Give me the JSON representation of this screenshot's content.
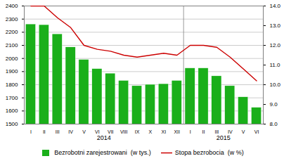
{
  "chart_data": {
    "type": "bar",
    "categories": [
      "I",
      "II",
      "III",
      "IV",
      "V",
      "VI",
      "VII",
      "VIII",
      "IX",
      "X",
      "XI",
      "XII",
      "I",
      "II",
      "III",
      "IV",
      "V",
      "VI"
    ],
    "series": [
      {
        "name": "Bezrobotni zarejestrowani  (w tys.)",
        "type": "bar",
        "color": "#1aaf1a",
        "values": [
          2260,
          2255,
          2185,
          2085,
          1990,
          1920,
          1885,
          1830,
          1790,
          1800,
          1805,
          1830,
          1925,
          1925,
          1865,
          1790,
          1705,
          1625
        ]
      },
      {
        "name": "Stopa bezrobocia  (w %)",
        "type": "line",
        "color": "#cc0000",
        "axis": "y2",
        "values": [
          14.0,
          14.0,
          13.4,
          12.9,
          12.0,
          11.8,
          11.7,
          11.5,
          11.4,
          11.5,
          11.6,
          11.5,
          12.0,
          12.0,
          11.9,
          11.4,
          10.8,
          10.2
        ]
      }
    ],
    "ylim": [
      1500,
      2400
    ],
    "yticks": [
      1500,
      1600,
      1700,
      1800,
      1900,
      2000,
      2100,
      2200,
      2300,
      2400
    ],
    "y2lim": [
      8.0,
      14.0
    ],
    "y2ticks": [
      {
        "value": 8,
        "label": "8.0"
      },
      {
        "value": 9,
        "label": "9.0"
      },
      {
        "value": 10,
        "label": "10.0"
      },
      {
        "value": 11,
        "label": "11.0"
      },
      {
        "value": 12,
        "label": "12.0"
      },
      {
        "value": 13,
        "label": "13.0"
      },
      {
        "value": 14,
        "label": "14.0"
      }
    ],
    "grid": true,
    "legend": "bottom",
    "annotations": [
      {
        "text": "2014",
        "x": 5.5
      },
      {
        "text": "2015",
        "x": 14.5
      },
      {
        "type": "vline",
        "x": 11.5
      }
    ]
  }
}
